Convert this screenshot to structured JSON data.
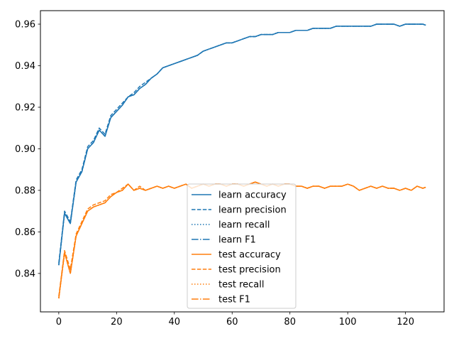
{
  "chart_data": {
    "type": "line",
    "title": "",
    "xlabel": "",
    "ylabel": "",
    "xlim": [
      -6.35,
      133.35
    ],
    "ylim": [
      0.8215,
      0.9665
    ],
    "xticks": [
      0,
      20,
      40,
      60,
      80,
      100,
      120
    ],
    "yticks": [
      0.84,
      0.86,
      0.88,
      0.9,
      0.92,
      0.94,
      0.96
    ],
    "xtick_labels": [
      "0",
      "20",
      "40",
      "60",
      "80",
      "100",
      "120"
    ],
    "ytick_labels": [
      "0.84",
      "0.86",
      "0.88",
      "0.90",
      "0.92",
      "0.94",
      "0.96"
    ],
    "grid": false,
    "legend_position": "lower center",
    "x": [
      0,
      2,
      4,
      6,
      8,
      10,
      12,
      14,
      16,
      18,
      20,
      22,
      24,
      26,
      28,
      30,
      32,
      34,
      36,
      38,
      40,
      42,
      44,
      46,
      48,
      50,
      52,
      54,
      56,
      58,
      60,
      62,
      64,
      66,
      68,
      70,
      72,
      74,
      76,
      78,
      80,
      82,
      84,
      86,
      88,
      90,
      92,
      94,
      96,
      98,
      100,
      102,
      104,
      106,
      108,
      110,
      112,
      114,
      116,
      118,
      120,
      122,
      124,
      126,
      127
    ],
    "series": [
      {
        "name": "learn accuracy",
        "color": "#1f77b4",
        "dash": "solid",
        "values": [
          0.844,
          0.869,
          0.864,
          0.884,
          0.889,
          0.9,
          0.903,
          0.909,
          0.906,
          0.915,
          0.918,
          0.921,
          0.925,
          0.926,
          0.929,
          0.931,
          0.934,
          0.936,
          0.939,
          0.94,
          0.941,
          0.942,
          0.943,
          0.944,
          0.945,
          0.947,
          0.948,
          0.949,
          0.95,
          0.951,
          0.951,
          0.952,
          0.953,
          0.954,
          0.954,
          0.955,
          0.955,
          0.955,
          0.956,
          0.956,
          0.956,
          0.957,
          0.957,
          0.957,
          0.958,
          0.958,
          0.958,
          0.958,
          0.959,
          0.959,
          0.959,
          0.959,
          0.959,
          0.959,
          0.959,
          0.96,
          0.96,
          0.96,
          0.96,
          0.959,
          0.96,
          0.96,
          0.96,
          0.96,
          0.9595
        ]
      },
      {
        "name": "learn precision",
        "color": "#1f77b4",
        "dash": "dashed",
        "values": [
          0.845,
          0.87,
          0.865,
          0.885,
          0.89,
          0.901,
          0.904,
          0.91,
          0.907,
          0.916,
          0.919,
          0.922,
          0.925,
          0.927,
          0.93,
          0.932,
          0.934,
          0.936,
          0.939,
          0.94,
          0.941,
          0.942,
          0.943,
          0.944,
          0.945,
          0.947,
          0.948,
          0.949,
          0.95,
          0.951,
          0.951,
          0.952,
          0.953,
          0.954,
          0.954,
          0.955,
          0.955,
          0.955,
          0.956,
          0.956,
          0.956,
          0.957,
          0.957,
          0.957,
          0.958,
          0.958,
          0.958,
          0.958,
          0.959,
          0.959,
          0.959,
          0.959,
          0.959,
          0.959,
          0.959,
          0.96,
          0.96,
          0.96,
          0.96,
          0.959,
          0.96,
          0.96,
          0.96,
          0.96,
          0.9595
        ]
      },
      {
        "name": "learn recall",
        "color": "#1f77b4",
        "dash": "dotted",
        "values": [
          0.844,
          0.869,
          0.864,
          0.884,
          0.889,
          0.9,
          0.903,
          0.909,
          0.906,
          0.915,
          0.918,
          0.921,
          0.925,
          0.926,
          0.929,
          0.931,
          0.934,
          0.936,
          0.939,
          0.94,
          0.941,
          0.942,
          0.943,
          0.944,
          0.945,
          0.947,
          0.948,
          0.949,
          0.95,
          0.951,
          0.951,
          0.952,
          0.953,
          0.954,
          0.954,
          0.955,
          0.955,
          0.955,
          0.956,
          0.956,
          0.956,
          0.957,
          0.957,
          0.957,
          0.958,
          0.958,
          0.958,
          0.958,
          0.959,
          0.959,
          0.959,
          0.959,
          0.959,
          0.959,
          0.959,
          0.96,
          0.96,
          0.96,
          0.96,
          0.959,
          0.96,
          0.96,
          0.96,
          0.96,
          0.9595
        ]
      },
      {
        "name": "learn F1",
        "color": "#1f77b4",
        "dash": "dashdot",
        "values": [
          0.844,
          0.869,
          0.864,
          0.884,
          0.889,
          0.9,
          0.903,
          0.909,
          0.906,
          0.915,
          0.918,
          0.921,
          0.925,
          0.926,
          0.929,
          0.931,
          0.934,
          0.936,
          0.939,
          0.94,
          0.941,
          0.942,
          0.943,
          0.944,
          0.945,
          0.947,
          0.948,
          0.949,
          0.95,
          0.951,
          0.951,
          0.952,
          0.953,
          0.954,
          0.954,
          0.955,
          0.955,
          0.955,
          0.956,
          0.956,
          0.956,
          0.957,
          0.957,
          0.957,
          0.958,
          0.958,
          0.958,
          0.958,
          0.959,
          0.959,
          0.959,
          0.959,
          0.959,
          0.959,
          0.959,
          0.96,
          0.96,
          0.96,
          0.96,
          0.959,
          0.96,
          0.96,
          0.96,
          0.96,
          0.9595
        ]
      },
      {
        "name": "test accuracy",
        "color": "#ff7f0e",
        "dash": "solid",
        "values": [
          0.828,
          0.85,
          0.84,
          0.858,
          0.864,
          0.87,
          0.872,
          0.873,
          0.874,
          0.877,
          0.879,
          0.88,
          0.883,
          0.88,
          0.881,
          0.88,
          0.881,
          0.882,
          0.881,
          0.882,
          0.881,
          0.882,
          0.883,
          0.881,
          0.882,
          0.883,
          0.882,
          0.883,
          0.883,
          0.882,
          0.883,
          0.883,
          0.882,
          0.883,
          0.884,
          0.883,
          0.882,
          0.883,
          0.882,
          0.883,
          0.883,
          0.882,
          0.882,
          0.881,
          0.882,
          0.882,
          0.881,
          0.882,
          0.882,
          0.882,
          0.883,
          0.882,
          0.88,
          0.881,
          0.882,
          0.881,
          0.882,
          0.881,
          0.881,
          0.88,
          0.881,
          0.88,
          0.882,
          0.881,
          0.8815
        ]
      },
      {
        "name": "test precision",
        "color": "#ff7f0e",
        "dash": "dashed",
        "values": [
          0.829,
          0.851,
          0.842,
          0.859,
          0.865,
          0.871,
          0.873,
          0.874,
          0.875,
          0.878,
          0.879,
          0.881,
          0.883,
          0.88,
          0.882,
          0.88,
          0.881,
          0.882,
          0.881,
          0.882,
          0.881,
          0.882,
          0.883,
          0.881,
          0.882,
          0.883,
          0.882,
          0.883,
          0.883,
          0.882,
          0.883,
          0.883,
          0.882,
          0.883,
          0.884,
          0.883,
          0.882,
          0.883,
          0.882,
          0.883,
          0.883,
          0.882,
          0.882,
          0.881,
          0.882,
          0.882,
          0.881,
          0.882,
          0.882,
          0.882,
          0.883,
          0.882,
          0.88,
          0.881,
          0.882,
          0.881,
          0.882,
          0.881,
          0.881,
          0.88,
          0.881,
          0.88,
          0.882,
          0.881,
          0.8815
        ]
      },
      {
        "name": "test recall",
        "color": "#ff7f0e",
        "dash": "dotted",
        "values": [
          0.828,
          0.85,
          0.84,
          0.858,
          0.864,
          0.87,
          0.872,
          0.873,
          0.874,
          0.877,
          0.879,
          0.88,
          0.883,
          0.88,
          0.881,
          0.88,
          0.881,
          0.882,
          0.881,
          0.882,
          0.881,
          0.882,
          0.883,
          0.881,
          0.882,
          0.883,
          0.882,
          0.883,
          0.883,
          0.882,
          0.883,
          0.883,
          0.882,
          0.883,
          0.884,
          0.883,
          0.882,
          0.883,
          0.882,
          0.883,
          0.883,
          0.882,
          0.882,
          0.881,
          0.882,
          0.882,
          0.881,
          0.882,
          0.882,
          0.882,
          0.883,
          0.882,
          0.88,
          0.881,
          0.882,
          0.881,
          0.882,
          0.881,
          0.881,
          0.88,
          0.881,
          0.88,
          0.882,
          0.881,
          0.8815
        ]
      },
      {
        "name": "test F1",
        "color": "#ff7f0e",
        "dash": "dashdot",
        "values": [
          0.828,
          0.85,
          0.84,
          0.858,
          0.864,
          0.87,
          0.872,
          0.873,
          0.874,
          0.877,
          0.879,
          0.88,
          0.883,
          0.88,
          0.881,
          0.88,
          0.881,
          0.882,
          0.881,
          0.882,
          0.881,
          0.882,
          0.883,
          0.881,
          0.882,
          0.883,
          0.882,
          0.883,
          0.883,
          0.882,
          0.883,
          0.883,
          0.882,
          0.883,
          0.884,
          0.883,
          0.882,
          0.883,
          0.882,
          0.883,
          0.883,
          0.882,
          0.882,
          0.881,
          0.882,
          0.882,
          0.881,
          0.882,
          0.882,
          0.882,
          0.883,
          0.882,
          0.88,
          0.881,
          0.882,
          0.881,
          0.882,
          0.881,
          0.881,
          0.88,
          0.881,
          0.88,
          0.882,
          0.881,
          0.8815
        ]
      }
    ]
  }
}
